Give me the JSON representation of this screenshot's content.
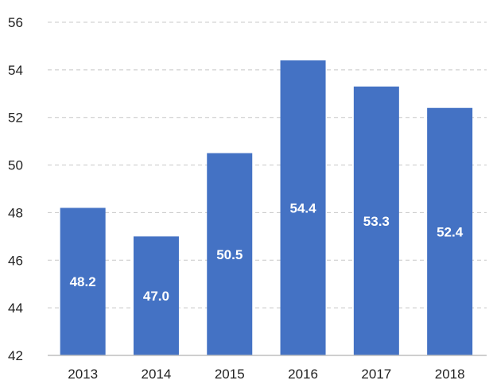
{
  "chart_data": {
    "type": "bar",
    "categories": [
      "2013",
      "2014",
      "2015",
      "2016",
      "2017",
      "2018"
    ],
    "values": [
      48.2,
      47.0,
      50.5,
      54.4,
      53.3,
      52.4
    ],
    "value_labels": [
      "48.2",
      "47.0",
      "50.5",
      "54.4",
      "53.3",
      "52.4"
    ],
    "ylim": [
      42,
      56
    ],
    "yticks": [
      42,
      44,
      46,
      48,
      50,
      52,
      54,
      56
    ],
    "grid": true,
    "bar_color": "#4472C4",
    "label_color": "#ffffff",
    "grid_color": "#c8c8c8",
    "axis_color": "#bfbfbf"
  }
}
